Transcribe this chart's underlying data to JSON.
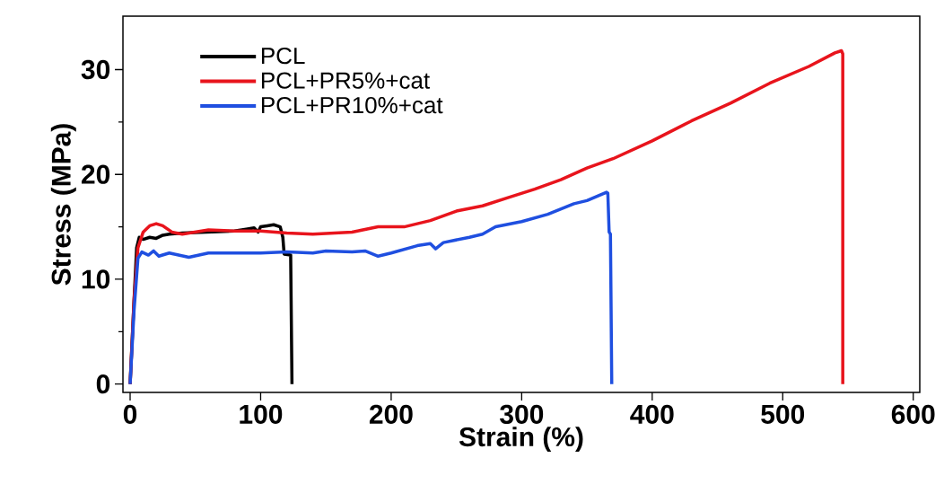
{
  "chart_data": {
    "type": "line",
    "xlabel": "Strain (%)",
    "ylabel": "Stress (MPa)",
    "xlim": [
      -5.5,
      605
    ],
    "ylim": [
      -0.8,
      35.1
    ],
    "xticks": [
      0,
      100,
      200,
      300,
      400,
      500,
      600
    ],
    "yticks": [
      0,
      10,
      20,
      30
    ],
    "grid": false,
    "legend": "top left",
    "marker": "none",
    "line_style": "solid",
    "series": [
      {
        "name": "PCL",
        "color": "#000000",
        "x": [
          0,
          3,
          5,
          7,
          10,
          15,
          20,
          25,
          30,
          40,
          60,
          80,
          90,
          95,
          98,
          100,
          105,
          110,
          115,
          117,
          118,
          123,
          124
        ],
        "values": [
          0,
          8,
          13,
          14,
          13.8,
          14,
          13.9,
          14.2,
          14.3,
          14.4,
          14.5,
          14.6,
          14.8,
          14.9,
          14.5,
          15,
          15.1,
          15.2,
          15,
          14,
          12.4,
          12.3,
          0
        ]
      },
      {
        "name": "PCL+PR5%+cat",
        "color": "#e8141c",
        "x": [
          0,
          3,
          6,
          10,
          15,
          20,
          25,
          32,
          40,
          60,
          80,
          100,
          120,
          140,
          170,
          190,
          210,
          230,
          250,
          270,
          290,
          310,
          330,
          350,
          370,
          400,
          430,
          460,
          490,
          520,
          540,
          545,
          546,
          546
        ],
        "values": [
          0,
          8,
          13,
          14.5,
          15.1,
          15.3,
          15.1,
          14.5,
          14.3,
          14.7,
          14.6,
          14.6,
          14.4,
          14.3,
          14.5,
          15,
          15,
          15.6,
          16.5,
          17,
          17.8,
          18.6,
          19.5,
          20.6,
          21.5,
          23.2,
          25.1,
          26.8,
          28.7,
          30.3,
          31.6,
          31.8,
          31.5,
          0
        ]
      },
      {
        "name": "PCL+PR10%+cat",
        "color": "#1f4fe0",
        "x": [
          0,
          3,
          6,
          9,
          14,
          18,
          22,
          30,
          45,
          60,
          100,
          120,
          140,
          150,
          170,
          180,
          190,
          200,
          220,
          230,
          234,
          240,
          260,
          270,
          280,
          300,
          320,
          340,
          350,
          365,
          366,
          367,
          368,
          369
        ],
        "values": [
          0,
          7,
          12,
          12.6,
          12.3,
          12.7,
          12.2,
          12.5,
          12.1,
          12.5,
          12.5,
          12.6,
          12.5,
          12.7,
          12.6,
          12.7,
          12.2,
          12.5,
          13.2,
          13.4,
          12.9,
          13.5,
          14,
          14.3,
          15,
          15.5,
          16.2,
          17.2,
          17.5,
          18.3,
          18.2,
          14.5,
          14.3,
          0
        ]
      }
    ]
  }
}
